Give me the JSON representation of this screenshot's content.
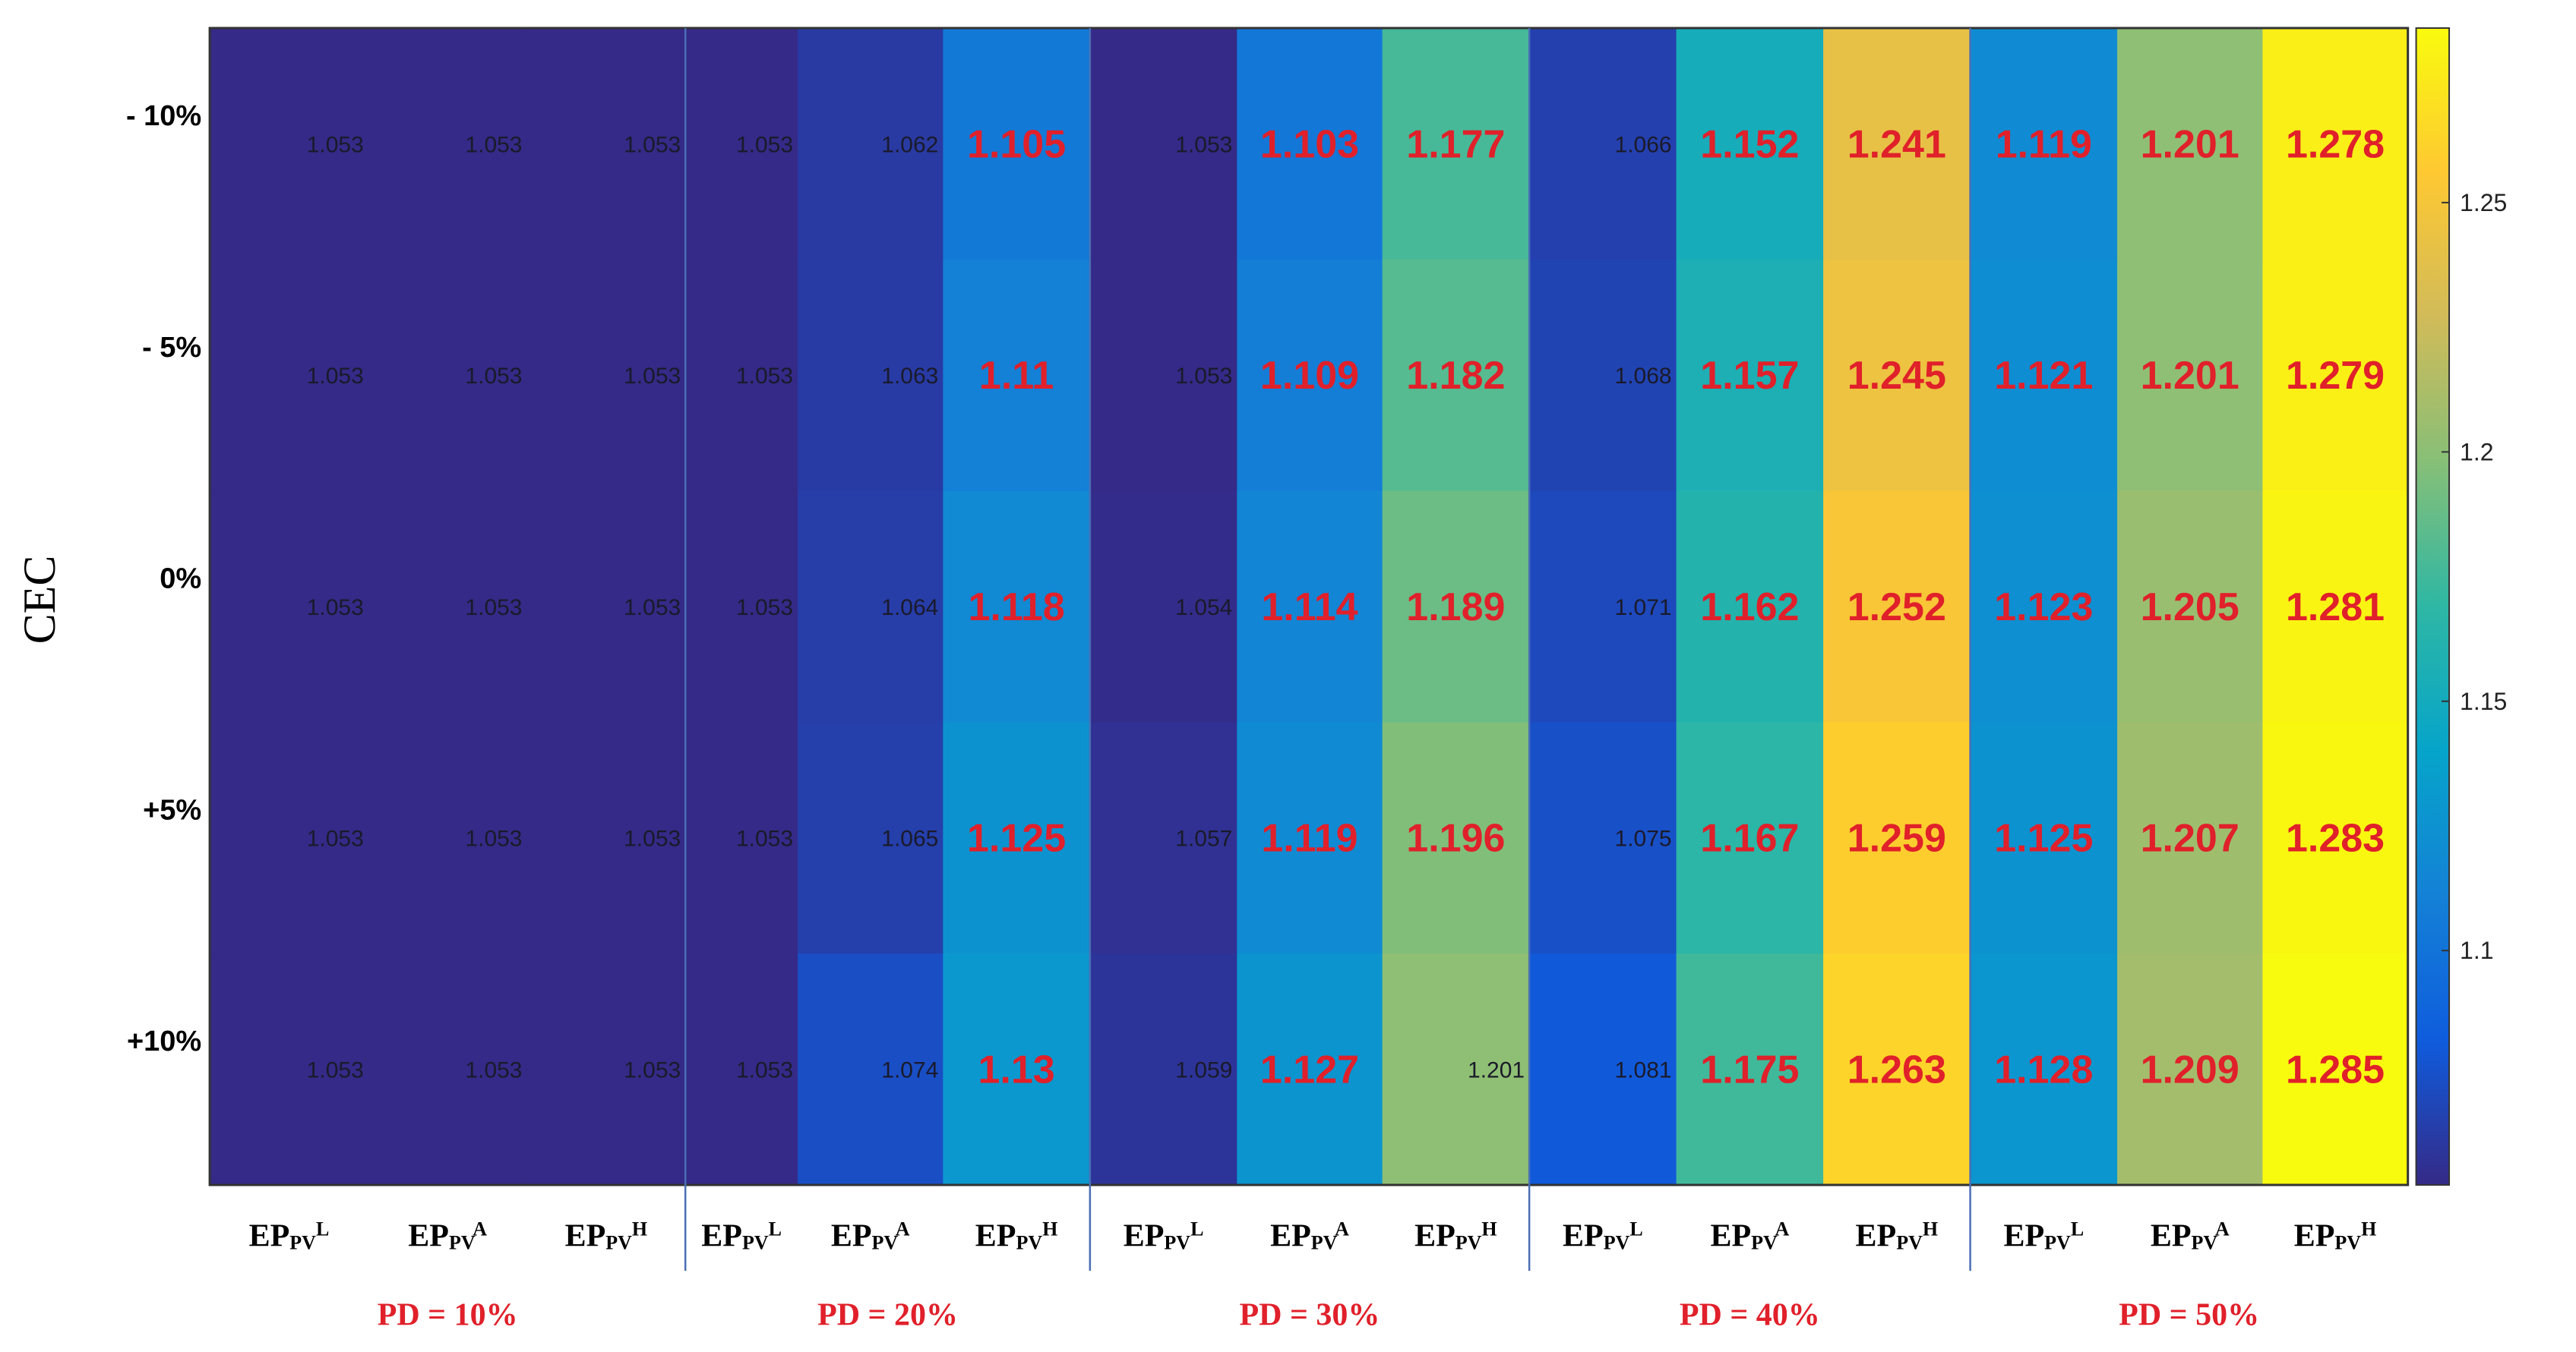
{
  "chart_data": {
    "type": "heatmap",
    "ylabel": "CEC",
    "row_labels": [
      "- 10%",
      "- 5%",
      "0%",
      "+5%",
      "+10%"
    ],
    "column_labels": [
      {
        "base": "EP",
        "sub": "PV",
        "sup": "L"
      },
      {
        "base": "EP",
        "sub": "PV",
        "sup": "A"
      },
      {
        "base": "EP",
        "sub": "PV",
        "sup": "H"
      },
      {
        "base": "EP",
        "sub": "PV",
        "sup": "L"
      },
      {
        "base": "EP",
        "sub": "PV",
        "sup": "A"
      },
      {
        "base": "EP",
        "sub": "PV",
        "sup": "H"
      },
      {
        "base": "EP",
        "sub": "PV",
        "sup": "L"
      },
      {
        "base": "EP",
        "sub": "PV",
        "sup": "A"
      },
      {
        "base": "EP",
        "sub": "PV",
        "sup": "H"
      },
      {
        "base": "EP",
        "sub": "PV",
        "sup": "L"
      },
      {
        "base": "EP",
        "sub": "PV",
        "sup": "A"
      },
      {
        "base": "EP",
        "sub": "PV",
        "sup": "H"
      },
      {
        "base": "EP",
        "sub": "PV",
        "sup": "L"
      },
      {
        "base": "EP",
        "sub": "PV",
        "sup": "A"
      },
      {
        "base": "EP",
        "sub": "PV",
        "sup": "H"
      }
    ],
    "groups": [
      "PD = 10%",
      "PD = 20%",
      "PD = 30%",
      "PD = 40%",
      "PD = 50%"
    ],
    "values": [
      [
        1.053,
        1.053,
        1.053,
        1.053,
        1.062,
        1.105,
        1.053,
        1.103,
        1.177,
        1.066,
        1.152,
        1.241,
        1.119,
        1.201,
        1.278
      ],
      [
        1.053,
        1.053,
        1.053,
        1.053,
        1.063,
        1.11,
        1.053,
        1.109,
        1.182,
        1.068,
        1.157,
        1.245,
        1.121,
        1.201,
        1.279
      ],
      [
        1.053,
        1.053,
        1.053,
        1.053,
        1.064,
        1.118,
        1.054,
        1.114,
        1.189,
        1.071,
        1.162,
        1.252,
        1.123,
        1.205,
        1.281
      ],
      [
        1.053,
        1.053,
        1.053,
        1.053,
        1.065,
        1.125,
        1.057,
        1.119,
        1.196,
        1.075,
        1.167,
        1.259,
        1.125,
        1.207,
        1.283
      ],
      [
        1.053,
        1.053,
        1.053,
        1.053,
        1.074,
        1.13,
        1.059,
        1.127,
        1.201,
        1.081,
        1.175,
        1.263,
        1.128,
        1.209,
        1.285
      ]
    ],
    "labels_text": [
      [
        "1.053",
        "1.053",
        "1.053",
        "1.053",
        "1.062",
        "1.105",
        "1.053",
        "1.103",
        "1.177",
        "1.066",
        "1.152",
        "1.241",
        "1.119",
        "1.201",
        "1.278"
      ],
      [
        "1.053",
        "1.053",
        "1.053",
        "1.053",
        "1.063",
        "1.11",
        "1.053",
        "1.109",
        "1.182",
        "1.068",
        "1.157",
        "1.245",
        "1.121",
        "1.201",
        "1.279"
      ],
      [
        "1.053",
        "1.053",
        "1.053",
        "1.053",
        "1.064",
        "1.118",
        "1.054",
        "1.114",
        "1.189",
        "1.071",
        "1.162",
        "1.252",
        "1.123",
        "1.205",
        "1.281"
      ],
      [
        "1.053",
        "1.053",
        "1.053",
        "1.053",
        "1.065",
        "1.125",
        "1.057",
        "1.119",
        "1.196",
        "1.075",
        "1.167",
        "1.259",
        "1.125",
        "1.207",
        "1.283"
      ],
      [
        "1.053",
        "1.053",
        "1.053",
        "1.053",
        "1.074",
        "1.13",
        "1.059",
        "1.127",
        "1.201",
        "1.081",
        "1.175",
        "1.263",
        "1.128",
        "1.209",
        "1.285"
      ]
    ],
    "emphasized": [
      [
        0,
        0,
        0,
        0,
        0,
        1,
        0,
        1,
        1,
        0,
        1,
        1,
        1,
        1,
        1
      ],
      [
        0,
        0,
        0,
        0,
        0,
        1,
        0,
        1,
        1,
        0,
        1,
        1,
        1,
        1,
        1
      ],
      [
        0,
        0,
        0,
        0,
        0,
        1,
        0,
        1,
        1,
        0,
        1,
        1,
        1,
        1,
        1
      ],
      [
        0,
        0,
        0,
        0,
        0,
        1,
        0,
        1,
        1,
        0,
        1,
        1,
        1,
        1,
        1
      ],
      [
        0,
        0,
        0,
        0,
        0,
        1,
        0,
        1,
        0,
        0,
        1,
        1,
        1,
        1,
        1
      ]
    ],
    "colormap": "parula",
    "emphasis_color": "#e0202a",
    "group_label_color": "#e0202a",
    "colorbar": {
      "range": [
        1.053,
        1.285
      ],
      "ticks": [
        1.1,
        1.15,
        1.2,
        1.25
      ],
      "tick_labels": [
        "1.1",
        "1.15",
        "1.2",
        "1.25"
      ],
      "placement": "right"
    }
  }
}
